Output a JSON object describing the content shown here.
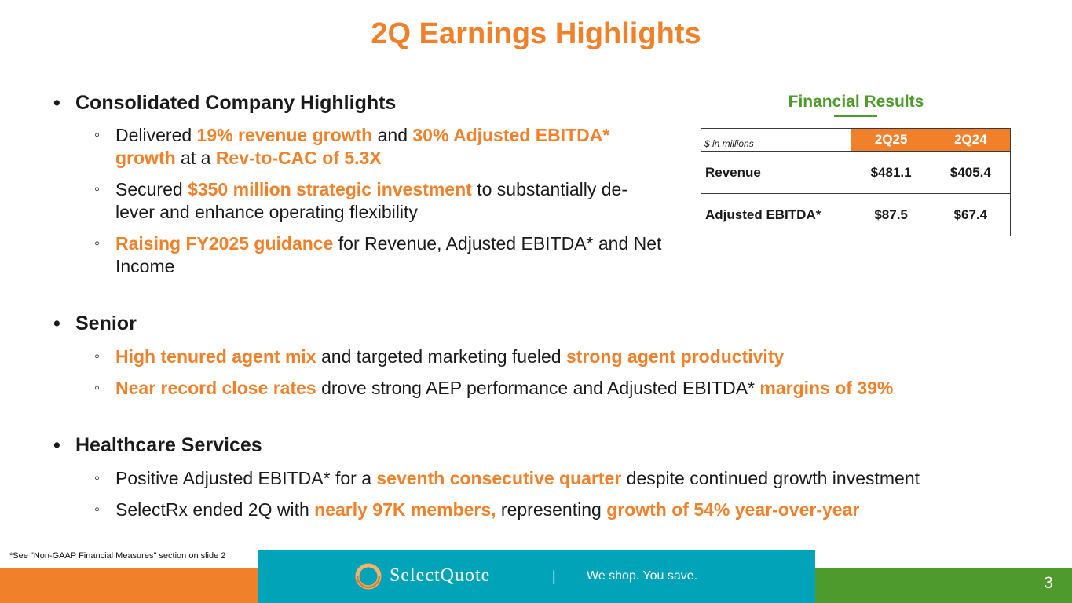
{
  "title": "2Q Earnings Highlights",
  "sections": {
    "consolidated": {
      "heading": "Consolidated Company Highlights",
      "items": [
        [
          {
            "t": "Delivered ",
            "h": false
          },
          {
            "t": "19% revenue growth",
            "h": true
          },
          {
            "t": " and ",
            "h": false
          },
          {
            "t": "30% Adjusted EBITDA* growth",
            "h": true
          },
          {
            "t": " at a ",
            "h": false
          },
          {
            "t": "Rev-to-CAC of  5.3X",
            "h": true
          }
        ],
        [
          {
            "t": "Secured ",
            "h": false
          },
          {
            "t": "$350 million strategic investment",
            "h": true
          },
          {
            "t": " to substantially de-lever and enhance operating flexibility",
            "h": false
          }
        ],
        [
          {
            "t": "Raising FY2025 guidance",
            "h": true
          },
          {
            "t": " for Revenue, Adjusted EBITDA* and Net Income",
            "h": false
          }
        ]
      ]
    },
    "senior": {
      "heading": "Senior",
      "items": [
        [
          {
            "t": "High tenured agent mix",
            "h": true
          },
          {
            "t": " and targeted marketing fueled ",
            "h": false
          },
          {
            "t": "strong agent productivity",
            "h": true
          }
        ],
        [
          {
            "t": "Near record close rates",
            "h": true
          },
          {
            "t": " drove strong AEP performance and Adjusted EBITDA* ",
            "h": false
          },
          {
            "t": "margins of 39%",
            "h": true
          }
        ]
      ]
    },
    "healthcare": {
      "heading": "Healthcare Services",
      "items": [
        [
          {
            "t": "Positive Adjusted EBITDA* for a ",
            "h": false
          },
          {
            "t": "seventh consecutive quarter",
            "h": true
          },
          {
            "t": " despite continued growth investment",
            "h": false
          }
        ],
        [
          {
            "t": "SelectRx ended 2Q with ",
            "h": false
          },
          {
            "t": "nearly 97K members,",
            "h": true
          },
          {
            "t": " representing ",
            "h": false
          },
          {
            "t": "growth of 54% year-over-year",
            "h": true
          }
        ]
      ]
    }
  },
  "financial_results": {
    "title": "Financial Results",
    "unit_label": "$ in millions",
    "columns": [
      "2Q25",
      "2Q24"
    ],
    "rows": [
      {
        "label": "Revenue",
        "values": [
          "$481.1",
          "$405.4"
        ]
      },
      {
        "label": "Adjusted EBITDA*",
        "values": [
          "$87.5",
          "$67.4"
        ]
      }
    ]
  },
  "footnote": "*See \"Non-GAAP Financial Measures\" section on slide 2",
  "footer": {
    "logo_text": "SelectQuote",
    "separator": "|",
    "tagline": "We shop. You save.",
    "page_number": "3"
  },
  "colors": {
    "accent_orange": "#F0802A",
    "accent_green": "#4E9A2C",
    "footer_teal": "#00A3B7"
  }
}
